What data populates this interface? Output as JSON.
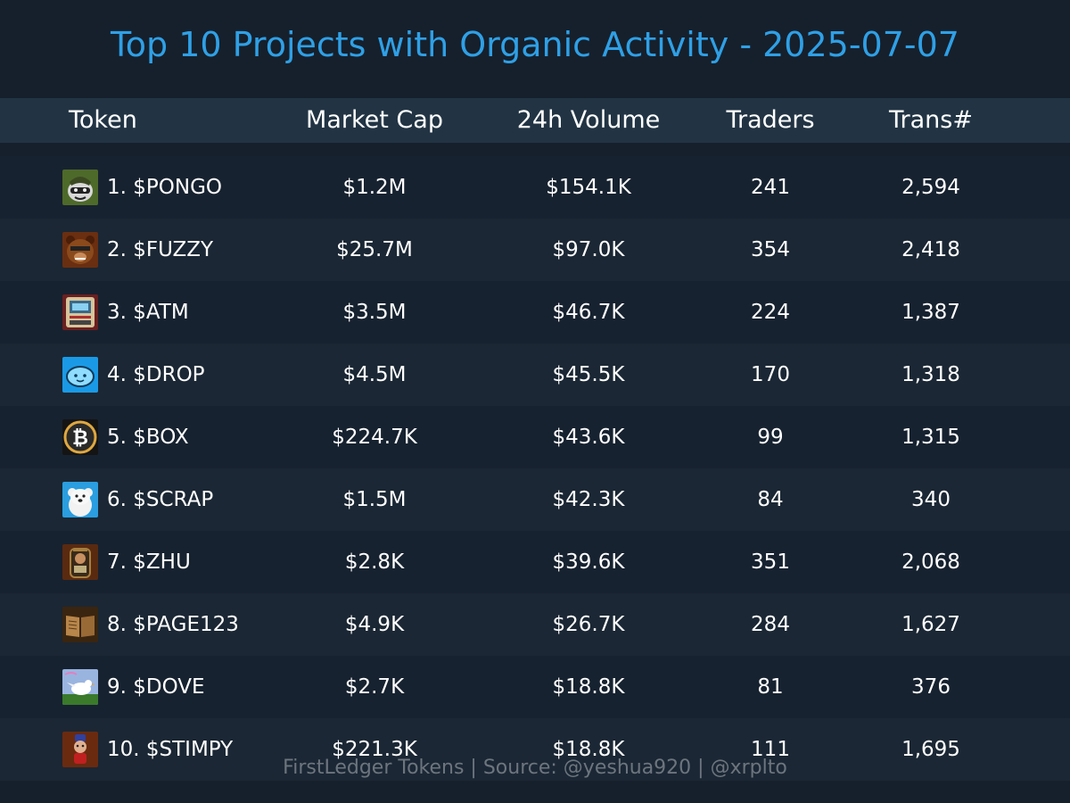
{
  "title": "Top 10 Projects with Organic Activity - 2025-07-07",
  "footer": "FirstLedger Tokens | Source: @yeshua920 | @xrplto",
  "colors": {
    "background": "#16202c",
    "header_background": "#223444",
    "title": "#2fa0e6",
    "text": "#ffffff",
    "footer_text": "#6c757f",
    "row_a": "#172230",
    "row_b": "#1b2734"
  },
  "chart_data": {
    "type": "table",
    "title": "Top 10 Projects with Organic Activity - 2025-07-07",
    "columns": [
      "Token",
      "Market Cap",
      "24h Volume",
      "Traders",
      "Trans#"
    ],
    "rows": [
      {
        "token": "1. $PONGO",
        "icon": "raccoon-icon",
        "market_cap": "$1.2M",
        "volume_24h": "$154.1K",
        "traders": "241",
        "transactions": "2,594"
      },
      {
        "token": "2. $FUZZY",
        "icon": "bear-icon",
        "market_cap": "$25.7M",
        "volume_24h": "$97.0K",
        "traders": "354",
        "transactions": "2,418"
      },
      {
        "token": "3. $ATM",
        "icon": "atm-icon",
        "market_cap": "$3.5M",
        "volume_24h": "$46.7K",
        "traders": "224",
        "transactions": "1,387"
      },
      {
        "token": "4. $DROP",
        "icon": "droplet-icon",
        "market_cap": "$4.5M",
        "volume_24h": "$45.5K",
        "traders": "170",
        "transactions": "1,318"
      },
      {
        "token": "5. $BOX",
        "icon": "bitcoin-icon",
        "market_cap": "$224.7K",
        "volume_24h": "$43.6K",
        "traders": "99",
        "transactions": "1,315"
      },
      {
        "token": "6. $SCRAP",
        "icon": "dog-icon",
        "market_cap": "$1.5M",
        "volume_24h": "$42.3K",
        "traders": "84",
        "transactions": "340"
      },
      {
        "token": "7. $ZHU",
        "icon": "pig-jar-icon",
        "market_cap": "$2.8K",
        "volume_24h": "$39.6K",
        "traders": "351",
        "transactions": "2,068"
      },
      {
        "token": "8. $PAGE123",
        "icon": "book-icon",
        "market_cap": "$4.9K",
        "volume_24h": "$26.7K",
        "traders": "284",
        "transactions": "1,627"
      },
      {
        "token": "9. $DOVE",
        "icon": "dove-icon",
        "market_cap": "$2.7K",
        "volume_24h": "$18.8K",
        "traders": "81",
        "transactions": "376"
      },
      {
        "token": "10. $STIMPY",
        "icon": "character-icon",
        "market_cap": "$221.3K",
        "volume_24h": "$18.8K",
        "traders": "111",
        "transactions": "1,695"
      }
    ]
  }
}
